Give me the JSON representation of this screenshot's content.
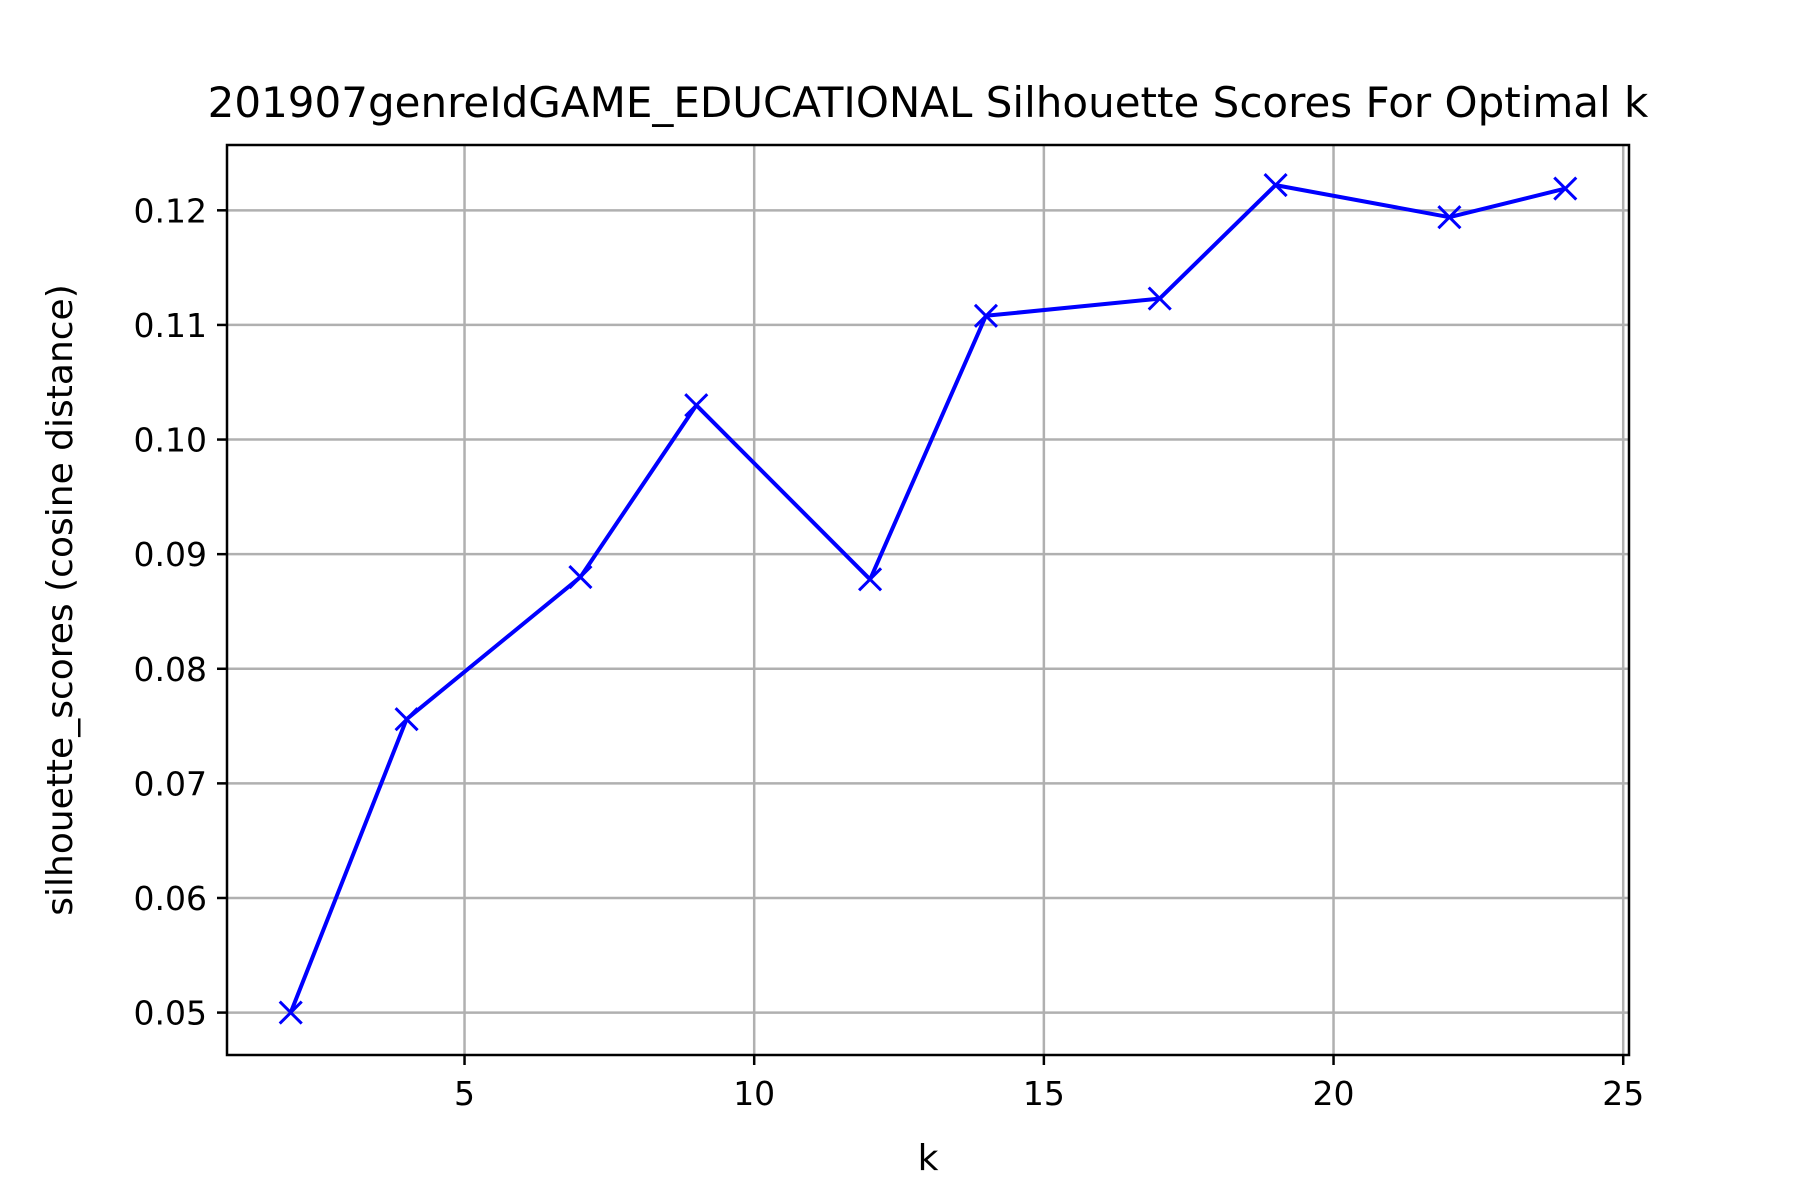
{
  "chart_data": {
    "type": "line",
    "title": "201907genreIdGAME_EDUCATIONAL Silhouette Scores For Optimal k",
    "xlabel": "k",
    "ylabel": "silhouette_scores (cosine distance)",
    "xlim": [
      0.9,
      25.1
    ],
    "ylim": [
      0.0463,
      0.1257
    ],
    "x_ticks": [
      5,
      10,
      15,
      20,
      25
    ],
    "y_ticks": [
      0.05,
      0.06,
      0.07,
      0.08,
      0.09,
      0.1,
      0.11,
      0.12
    ],
    "x_tick_labels": [
      "5",
      "10",
      "15",
      "20",
      "25"
    ],
    "y_tick_labels": [
      "0.05",
      "0.06",
      "0.07",
      "0.08",
      "0.09",
      "0.10",
      "0.11",
      "0.12"
    ],
    "grid": true,
    "marker": "x",
    "line_color": "#0000ff",
    "series": [
      {
        "x": [
          2,
          4,
          7,
          9,
          12,
          14,
          17,
          19,
          22,
          24
        ],
        "values": [
          0.05,
          0.0756,
          0.088,
          0.103,
          0.0878,
          0.1108,
          0.1123,
          0.1222,
          0.1194,
          0.1219
        ]
      }
    ]
  }
}
